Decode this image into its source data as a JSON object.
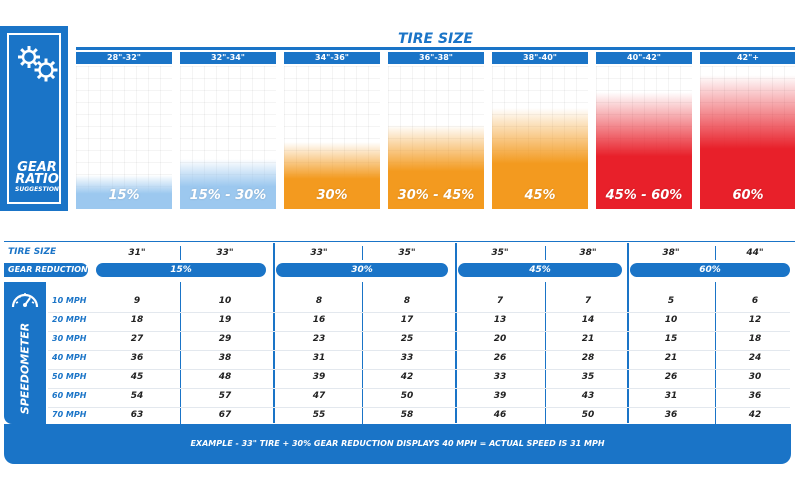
{
  "logo": {
    "line1": "GEAR",
    "line2": "RATIO",
    "line3": "SUGGESTION",
    "icon": "gears-icon"
  },
  "colors": {
    "brand_blue": "#1a74c7",
    "light_blue": "#9cc8ef",
    "orange": "#f39a1f",
    "red": "#e8202a"
  },
  "chart_data": {
    "type": "bar",
    "title": "TIRE SIZE",
    "categories": [
      "28\"-32\"",
      "32\"-34\"",
      "34\"-36\"",
      "36\"-38\"",
      "38\"-40\"",
      "40\"-42\"",
      "42\"+"
    ],
    "labels": [
      "15%",
      "15% - 30%",
      "30%",
      "30% - 45%",
      "45%",
      "45% - 60%",
      "60%"
    ],
    "values": [
      15,
      22.5,
      30,
      37.5,
      45,
      52.5,
      60
    ],
    "colors": [
      "#9cc8ef",
      "#9cc8ef",
      "#f39a1f",
      "#f39a1f",
      "#f39a1f",
      "#e8202a",
      "#e8202a"
    ],
    "ylim": [
      0,
      64
    ]
  },
  "table": {
    "tire_size_label": "TIRE SIZE",
    "gear_reduction_label": "GEAR REDUCTION",
    "speedometer_label": "SPEEDOMETER",
    "speedometer_icon": "speedometer-icon",
    "groups": [
      {
        "reduction": "15%",
        "tires": [
          "31\"",
          "33\""
        ]
      },
      {
        "reduction": "30%",
        "tires": [
          "33\"",
          "35\""
        ]
      },
      {
        "reduction": "45%",
        "tires": [
          "35\"",
          "38\""
        ]
      },
      {
        "reduction": "60%",
        "tires": [
          "38\"",
          "44\""
        ]
      }
    ],
    "speeds": [
      "10 MPH",
      "20 MPH",
      "30 MPH",
      "40 MPH",
      "50 MPH",
      "60 MPH",
      "70 MPH"
    ],
    "rows": [
      [
        "9",
        "10",
        "8",
        "8",
        "7",
        "7",
        "5",
        "6"
      ],
      [
        "18",
        "19",
        "16",
        "17",
        "13",
        "14",
        "10",
        "12"
      ],
      [
        "27",
        "29",
        "23",
        "25",
        "20",
        "21",
        "15",
        "18"
      ],
      [
        "36",
        "38",
        "31",
        "33",
        "26",
        "28",
        "21",
        "24"
      ],
      [
        "45",
        "48",
        "39",
        "42",
        "33",
        "35",
        "26",
        "30"
      ],
      [
        "54",
        "57",
        "47",
        "50",
        "39",
        "43",
        "31",
        "36"
      ],
      [
        "63",
        "67",
        "55",
        "58",
        "46",
        "50",
        "36",
        "42"
      ]
    ],
    "footer": "EXAMPLE - 33\" TIRE + 30% GEAR REDUCTION DISPLAYS 40 MPH = ACTUAL SPEED IS 31 MPH"
  }
}
